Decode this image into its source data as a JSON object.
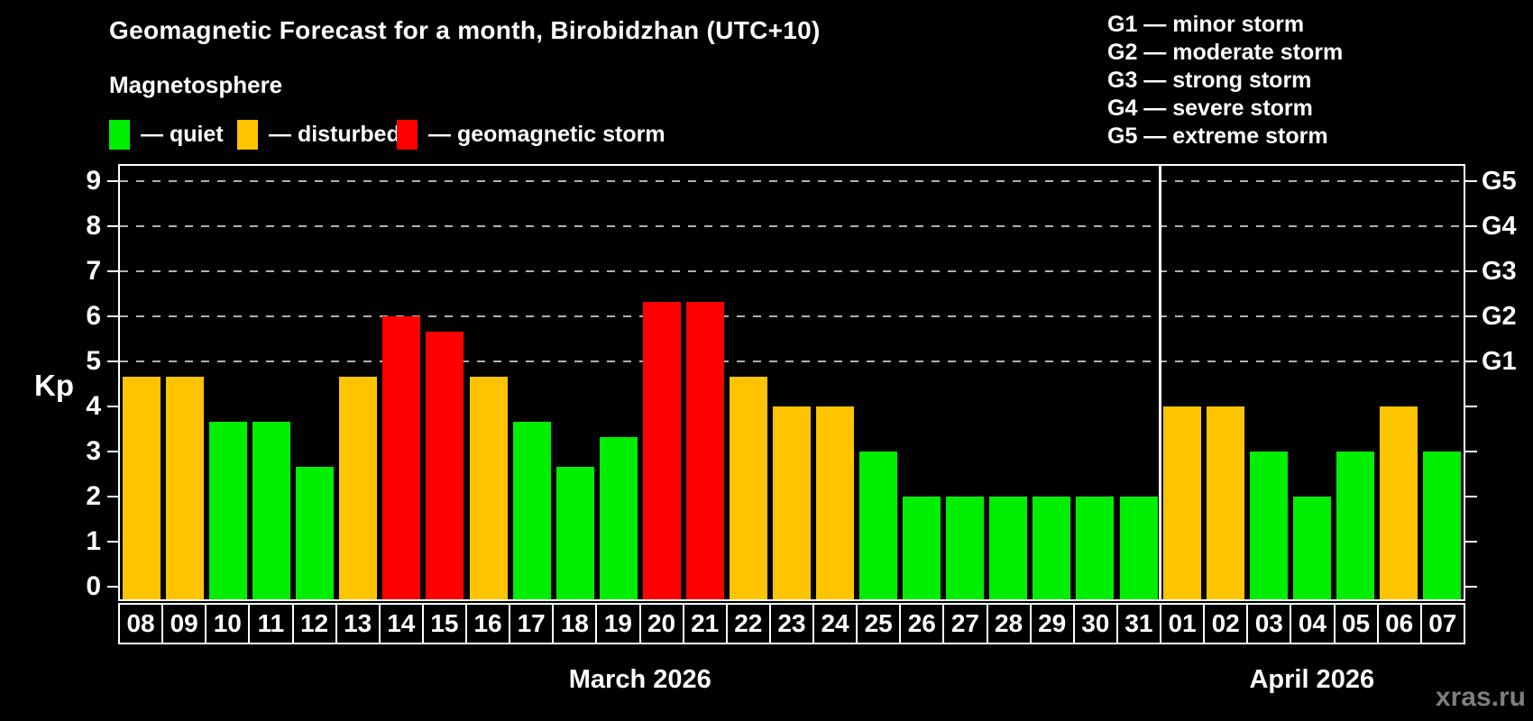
{
  "title": "Geomagnetic Forecast for a month, Birobidzhan (UTC+10)",
  "subtitle": "Magnetosphere",
  "legend": {
    "items": [
      {
        "status": "quiet",
        "label": "— quiet",
        "color": "#00ee00"
      },
      {
        "status": "disturbed",
        "label": "— disturbed",
        "color": "#ffc400"
      },
      {
        "status": "storm",
        "label": "— geomagnetic storm",
        "color": "#ff0000"
      }
    ]
  },
  "g_legend": [
    "G1 — minor storm",
    "G2 — moderate storm",
    "G3 — strong storm",
    "G4 — severe storm",
    "G5 — extreme storm"
  ],
  "watermark": "xras.ru",
  "chart_data": {
    "type": "bar",
    "ylabel": "Kp",
    "ylim": [
      0,
      9.4
    ],
    "yticks": [
      0,
      1,
      2,
      3,
      4,
      5,
      6,
      7,
      8,
      9
    ],
    "grid_kp": [
      5,
      6,
      7,
      8,
      9
    ],
    "grid_style": "dashed gray horizontal lines at G-storm levels only",
    "right_axis": [
      {
        "label": "G1",
        "kp": 5
      },
      {
        "label": "G2",
        "kp": 6
      },
      {
        "label": "G3",
        "kp": 7
      },
      {
        "label": "G4",
        "kp": 8
      },
      {
        "label": "G5",
        "kp": 9
      }
    ],
    "categories": [
      "08",
      "09",
      "10",
      "11",
      "12",
      "13",
      "14",
      "15",
      "16",
      "17",
      "18",
      "19",
      "20",
      "21",
      "22",
      "23",
      "24",
      "25",
      "26",
      "27",
      "28",
      "29",
      "30",
      "31",
      "01",
      "02",
      "03",
      "04",
      "05",
      "06",
      "07"
    ],
    "values": [
      4.67,
      4.67,
      3.67,
      3.67,
      2.67,
      4.67,
      6.0,
      5.67,
      4.67,
      3.67,
      2.67,
      3.33,
      6.33,
      6.33,
      4.67,
      4.0,
      4.0,
      3.0,
      2.0,
      2.0,
      2.0,
      2.0,
      2.0,
      2.0,
      4.0,
      4.0,
      3.0,
      2.0,
      3.0,
      4.0,
      3.0
    ],
    "statuses": [
      "disturbed",
      "disturbed",
      "quiet",
      "quiet",
      "quiet",
      "disturbed",
      "storm",
      "storm",
      "disturbed",
      "quiet",
      "quiet",
      "quiet",
      "storm",
      "storm",
      "disturbed",
      "disturbed",
      "disturbed",
      "quiet",
      "quiet",
      "quiet",
      "quiet",
      "quiet",
      "quiet",
      "quiet",
      "disturbed",
      "disturbed",
      "quiet",
      "quiet",
      "quiet",
      "disturbed",
      "quiet"
    ],
    "months": [
      {
        "label": "March 2026",
        "count": 24
      },
      {
        "label": "April 2026",
        "count": 7
      }
    ],
    "colors": {
      "quiet": "#00ee00",
      "disturbed": "#ffc400",
      "storm": "#ff0000"
    }
  }
}
